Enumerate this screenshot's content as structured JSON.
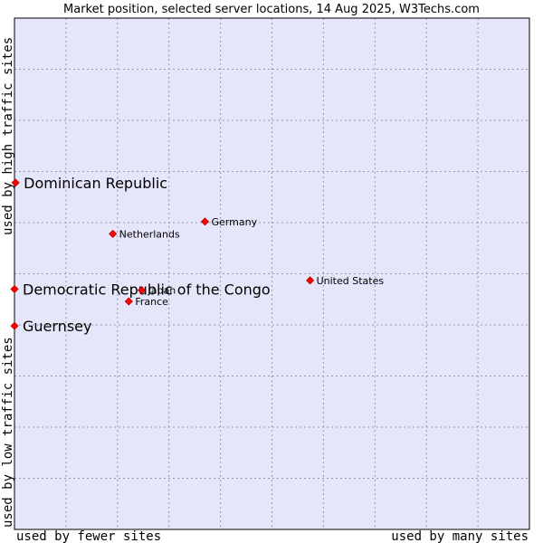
{
  "chart_data": {
    "type": "scatter",
    "title": "Market position, selected server locations, 14 Aug 2025, W3Techs.com",
    "xlabel_low": "used by fewer sites",
    "xlabel_high": "used by many sites",
    "ylabel_low": "used by low traffic sites",
    "ylabel_high": "used by high traffic sites",
    "grid": true,
    "xlim": [
      0,
      100
    ],
    "ylim": [
      0,
      100
    ],
    "points": [
      {
        "label": "Dominican Republic",
        "x": 0.2,
        "y": 67.8,
        "highlight": true
      },
      {
        "label": "Democratic Republic of the Congo",
        "x": 0.0,
        "y": 47.0,
        "highlight": true
      },
      {
        "label": "Guernsey",
        "x": 0.0,
        "y": 39.8,
        "highlight": true
      },
      {
        "label": "Netherlands",
        "x": 19.1,
        "y": 57.8,
        "highlight": false
      },
      {
        "label": "Germany",
        "x": 37.0,
        "y": 60.2,
        "highlight": false
      },
      {
        "label": "United States",
        "x": 57.4,
        "y": 48.7,
        "highlight": false
      },
      {
        "label": "Japan",
        "x": 24.7,
        "y": 46.8,
        "highlight": false
      },
      {
        "label": "France",
        "x": 22.2,
        "y": 44.6,
        "highlight": false
      }
    ],
    "colors": {
      "plot_bg": "#e6e6fa",
      "grid": "#9999aa",
      "marker": "#ff0000",
      "marker_stroke": "#bb0000"
    }
  }
}
